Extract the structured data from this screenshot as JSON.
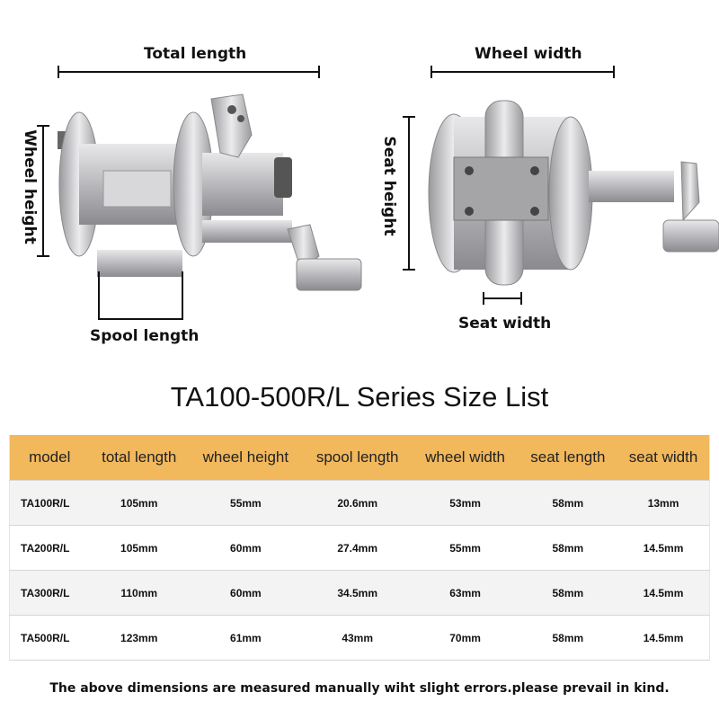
{
  "dimensions": {
    "total_length": "Total length",
    "wheel_height": "Wheel height",
    "spool_length": "Spool length",
    "wheel_width": "Wheel width",
    "seat_height": "Seat height",
    "seat_width": "Seat width"
  },
  "title": "TA100-500R/L Series Size List",
  "table": {
    "headers": [
      "model",
      "total length",
      "wheel height",
      "spool length",
      "wheel width",
      "seat length",
      "seat width"
    ],
    "rows": [
      [
        "TA100R/L",
        "105mm",
        "55mm",
        "20.6mm",
        "53mm",
        "58mm",
        "13mm"
      ],
      [
        "TA200R/L",
        "105mm",
        "60mm",
        "27.4mm",
        "55mm",
        "58mm",
        "14.5mm"
      ],
      [
        "TA300R/L",
        "110mm",
        "60mm",
        "34.5mm",
        "63mm",
        "58mm",
        "14.5mm"
      ],
      [
        "TA500R/L",
        "123mm",
        "61mm",
        "43mm",
        "70mm",
        "58mm",
        "14.5mm"
      ]
    ]
  },
  "footer": "The above dimensions are measured manually wiht slight errors.please prevail in kind.",
  "colors": {
    "header": "#f1b85c",
    "row_alt": "#f3f3f3"
  }
}
